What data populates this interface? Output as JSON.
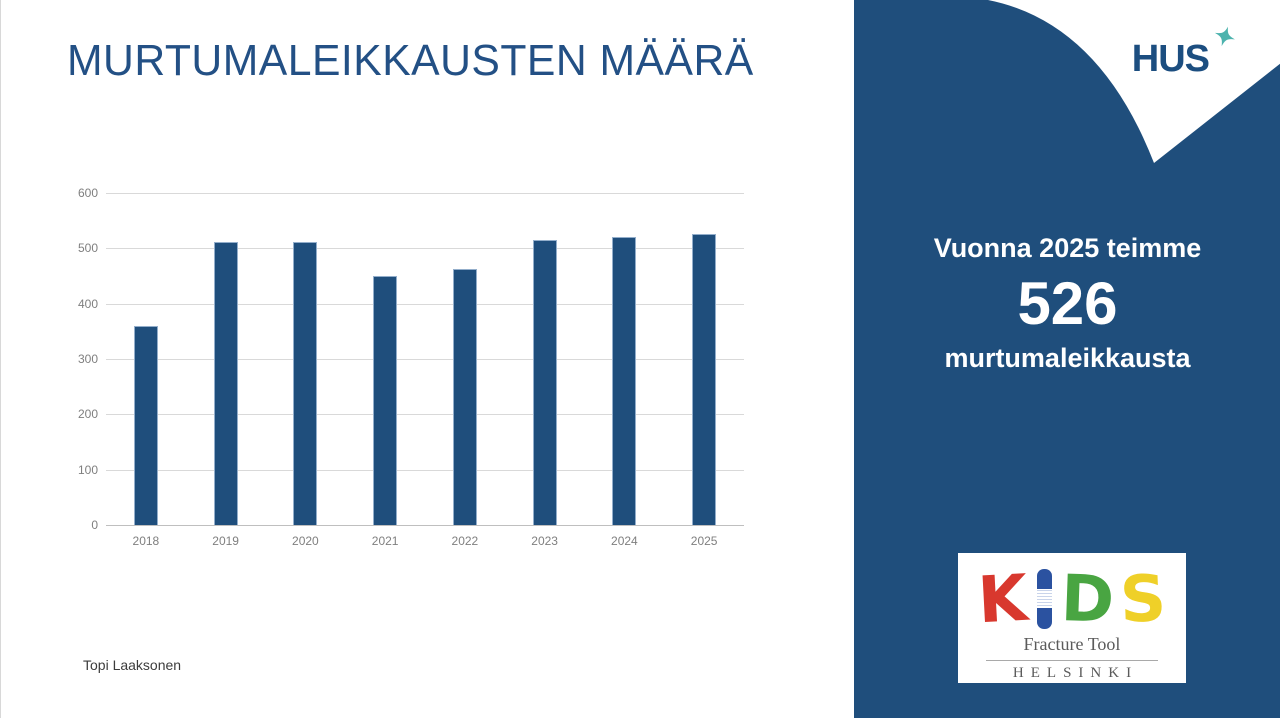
{
  "slide": {
    "title": "MURTUMALEIKKAUSTEN MÄÄRÄ",
    "title_color": "#235085",
    "author": "Topi Laaksonen"
  },
  "chart_data": {
    "type": "bar",
    "title": "",
    "categories": [
      "2018",
      "2019",
      "2020",
      "2021",
      "2022",
      "2023",
      "2024",
      "2025"
    ],
    "values": [
      360,
      511,
      512,
      450,
      463,
      515,
      521,
      526
    ],
    "xlabel": "",
    "ylabel": "",
    "ylim": [
      0,
      600
    ],
    "yticks": [
      0,
      100,
      200,
      300,
      400,
      500,
      600
    ],
    "grid": true,
    "legend": false,
    "bar_color": "#1F4E7C",
    "bar_border_color": "#93AECB",
    "gridline_color": "#D9D9D9",
    "axis_line_color": "#BFBFBF",
    "tick_label_color": "#7F7F7F"
  },
  "sidebar": {
    "background_color": "#1F4E7C",
    "hus_logo": {
      "text": "HUS",
      "text_color": "#1C4E80",
      "star_color": "#4DB3AE"
    },
    "callout": {
      "line1": "Vuonna 2025 teimme",
      "number": "526",
      "line2": "murtumaleikkausta",
      "text_color": "#FFFFFF"
    },
    "kids_logo": {
      "letters": [
        {
          "char": "K",
          "color": "#D8382E",
          "tilt": -3
        },
        {
          "char": "I",
          "color": "#2B52A0",
          "tilt": 0
        },
        {
          "char": "D",
          "color": "#49A542",
          "tilt": 2
        },
        {
          "char": "S",
          "color": "#EFD028",
          "tilt": -2
        }
      ],
      "subtitle": "Fracture Tool",
      "city": "HELSINKI",
      "text_color": "#5B5B5B"
    }
  }
}
